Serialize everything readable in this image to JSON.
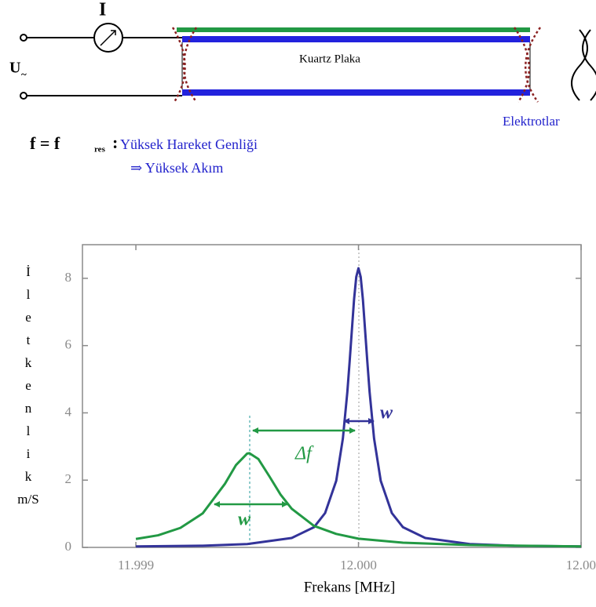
{
  "diagram": {
    "current_label": "I",
    "voltage_label": "U",
    "voltage_sub": "~",
    "plate_label": "Kuartz Plaka",
    "electrode_label": "Elektrotlar",
    "condition": "f = f",
    "condition_sub": "res",
    "condition_colon": ":",
    "lines": [
      "Yüksek Hareket Genliği",
      "⇒ Yüksek Akım"
    ]
  },
  "chart_data": {
    "type": "line",
    "xlabel": "Frekans [MHz]",
    "ylabel": [
      "İ",
      "l",
      "e",
      "t",
      "k",
      "e",
      "n",
      "l",
      "i",
      "k",
      "m/S"
    ],
    "xlim": [
      11.99876,
      12.001
    ],
    "ylim": [
      0,
      9
    ],
    "xticks": [
      11.999,
      {
        "value": 12,
        "label": "12.000"
      },
      {
        "value": 12.001,
        "label": "12.00"
      }
    ],
    "yticks": [
      0,
      2,
      4,
      6,
      8
    ],
    "annotations": [
      "Δf",
      "w",
      "w"
    ],
    "series": [
      {
        "color": "#333399",
        "x": [
          11.999,
          11.9993,
          11.9995,
          11.9997,
          11.9998,
          11.99985,
          11.9999,
          11.99993,
          11.99995,
          11.99996,
          11.99998,
          11.99999,
          12.0,
          12.00001,
          12.00002,
          12.00004,
          12.00005,
          12.00007,
          12.0001,
          12.00015,
          12.0002,
          12.0003,
          12.0005,
          12.0007,
          12.001
        ],
        "values": [
          0.03,
          0.05,
          0.1,
          0.28,
          0.6,
          1.02,
          1.98,
          3.24,
          4.62,
          5.5,
          7.36,
          8.04,
          8.3,
          8.04,
          7.36,
          5.5,
          4.62,
          3.24,
          1.98,
          1.02,
          0.6,
          0.28,
          0.1,
          0.05,
          0.03
        ]
      },
      {
        "color": "#229944",
        "x": [
          11.999,
          11.9991,
          11.9992,
          11.9993,
          11.9994,
          11.99945,
          11.9995,
          11.99951,
          11.99955,
          11.9996,
          11.99965,
          11.9997,
          11.9998,
          11.9999,
          12.0,
          12.0002,
          12.0005,
          12.001
        ],
        "values": [
          0.25,
          0.36,
          0.58,
          1.01,
          1.89,
          2.45,
          2.79,
          2.8,
          2.63,
          2.11,
          1.57,
          1.15,
          0.64,
          0.4,
          0.26,
          0.14,
          0.07,
          0.03
        ]
      }
    ]
  }
}
